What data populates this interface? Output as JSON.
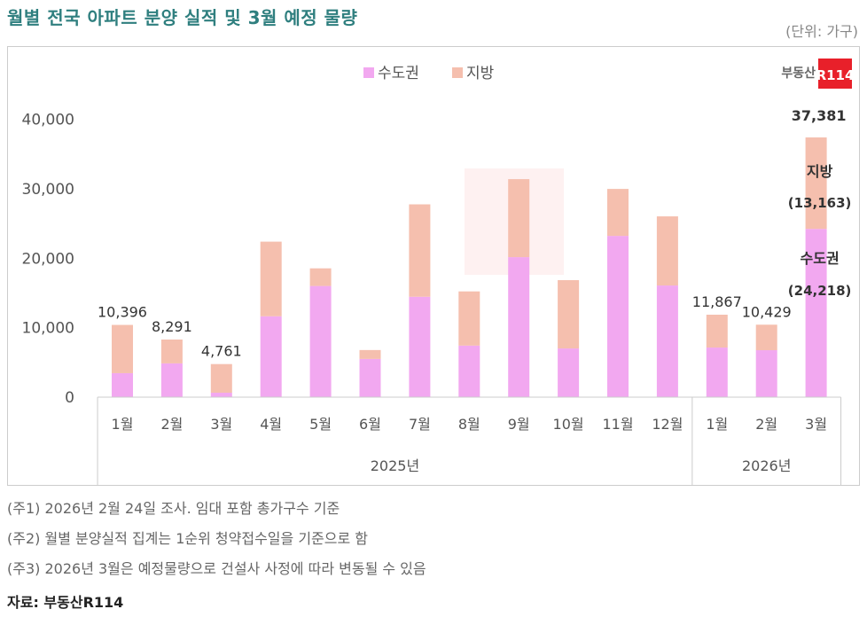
{
  "title": "월별 전국 아파트 분양 실적 및 3월 예정 물량",
  "unit": "(단위: 가구)",
  "logo": {
    "text": "부동산R114",
    "color": "#e8202a"
  },
  "chart_data": {
    "type": "bar",
    "stacked": true,
    "ylim": [
      0,
      40000
    ],
    "yticks": [
      "0",
      "10,000",
      "20,000",
      "30,000",
      "40,000"
    ],
    "grid": false,
    "legend_position": "top",
    "categories": [
      "1월",
      "2월",
      "3월",
      "4월",
      "5월",
      "6월",
      "7월",
      "8월",
      "9월",
      "10월",
      "11월",
      "12월",
      "1월",
      "2월",
      "3월"
    ],
    "groups": [
      {
        "label": "2025년",
        "count": 12
      },
      {
        "label": "2026년",
        "count": 3
      }
    ],
    "series": [
      {
        "name": "수도권",
        "color": "#f2a8f0",
        "values": [
          3450,
          4860,
          640,
          11640,
          16000,
          5500,
          14450,
          7420,
          20150,
          7010,
          23210,
          16070,
          7140,
          6760,
          24218
        ]
      },
      {
        "name": "지방",
        "color": "#f5bfae",
        "values": [
          6946,
          3431,
          4121,
          10740,
          2540,
          1280,
          13300,
          7800,
          11230,
          9830,
          6760,
          9950,
          4727,
          3669,
          13163
        ]
      }
    ],
    "total_labels": [
      "10,396",
      "8,291",
      "4,761",
      "",
      "",
      "",
      "",
      "",
      "",
      "",
      "",
      "",
      "11,867",
      "10,429",
      "37,381"
    ],
    "annotations": {
      "jibang_label": "지방",
      "jibang_value": "(13,163)",
      "sudo_label": "수도권",
      "sudo_value": "(24,218)"
    }
  },
  "notes": [
    "(주1) 2026년 2월 24일 조사. 임대 포함 총가구수 기준",
    "(주2) 월별 분양실적 집계는 1순위 청약접수일을 기준으로 함",
    "(주3) 2026년 3월은 예정물량으로 건설사 사정에 따라 변동될 수 있음"
  ],
  "source": "자료: 부동산R114"
}
